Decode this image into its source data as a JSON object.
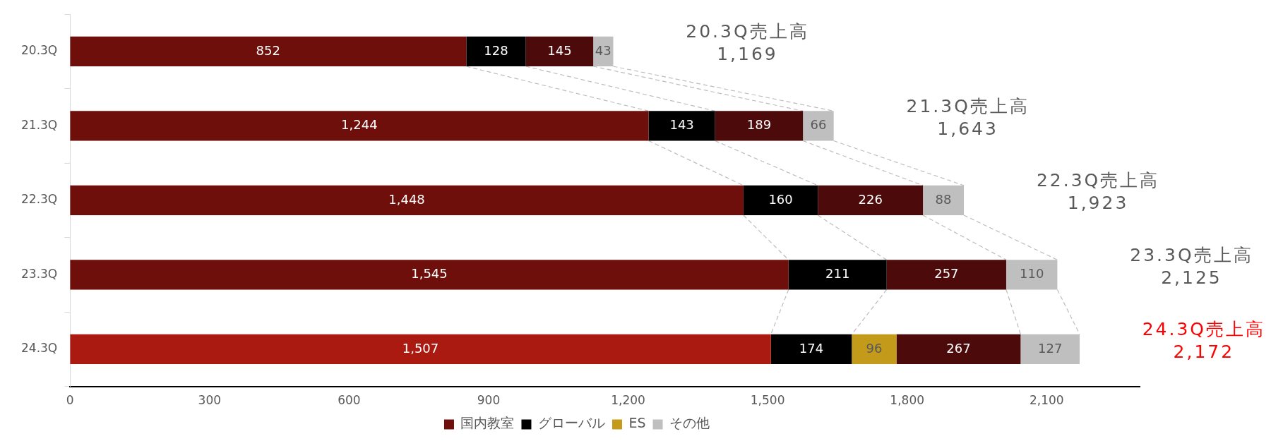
{
  "chart_data": {
    "type": "bar",
    "orientation": "horizontal",
    "stacked": true,
    "categories": [
      "20.3Q",
      "21.3Q",
      "22.3Q",
      "23.3Q",
      "24.3Q"
    ],
    "series": [
      {
        "name": "国内教室",
        "color": "#6f0f0b",
        "colors": [
          "#6f0f0b",
          "#6f0f0b",
          "#6f0f0b",
          "#6f0f0b",
          "#ab1a10"
        ],
        "values": [
          852,
          1244,
          1448,
          1545,
          1507
        ],
        "value_labels": [
          "852",
          "1,244",
          "1,448",
          "1,545",
          "1,507"
        ]
      },
      {
        "name": "グローバル",
        "color": "#000000",
        "values": [
          128,
          143,
          160,
          211,
          174
        ],
        "value_labels": [
          "128",
          "143",
          "160",
          "211",
          "174"
        ]
      },
      {
        "name": "ES",
        "color": "#c49a1a",
        "values": [
          null,
          null,
          null,
          null,
          96
        ],
        "value_labels": [
          null,
          null,
          null,
          null,
          "96"
        ]
      },
      {
        "color": "#4d0a0a",
        "values": [
          145,
          189,
          226,
          257,
          267
        ],
        "value_labels": [
          "145",
          "189",
          "226",
          "257",
          "267"
        ]
      },
      {
        "name": "その他",
        "color": "#bfbfbf",
        "values": [
          43,
          66,
          88,
          110,
          127
        ],
        "value_labels": [
          "43",
          "66",
          "88",
          "110",
          "127"
        ]
      }
    ],
    "xlim": [
      0,
      2300
    ],
    "xticks": [
      0,
      {
        "value": 300,
        "label": "300"
      },
      {
        "value": 600,
        "label": "600"
      },
      {
        "value": 900,
        "label": "900"
      },
      {
        "value": 1200,
        "label": "1,200"
      },
      {
        "value": 1500,
        "label": "1,500"
      },
      {
        "value": 1800,
        "label": "1,800"
      },
      {
        "value": 2100,
        "label": "2,100"
      }
    ],
    "grid": false,
    "legend": "bottom",
    "annotations": [
      "20.3Q売上高\n1,169",
      "21.3Q売上高\n1,643",
      "22.3Q売上高\n1,923",
      "23.3Q売上高\n2,125",
      "24.3Q売上高\n2,172"
    ]
  }
}
